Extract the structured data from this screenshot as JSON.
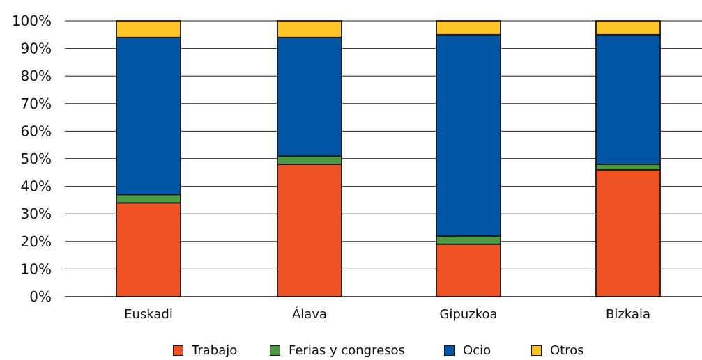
{
  "chart_data": {
    "type": "bar",
    "stacked": true,
    "categories": [
      "Euskadi",
      "Álava",
      "Gipuzkoa",
      "Bizkaia"
    ],
    "series": [
      {
        "name": "Trabajo",
        "color": "#ef5324",
        "values": [
          34,
          48,
          19,
          46
        ]
      },
      {
        "name": "Ferias y congresos",
        "color": "#4e9a43",
        "values": [
          3,
          3,
          3,
          2
        ]
      },
      {
        "name": "Ocio",
        "color": "#0055a5",
        "values": [
          57,
          43,
          73,
          47
        ]
      },
      {
        "name": "Otros",
        "color": "#ffc425",
        "values": [
          6,
          6,
          5,
          5
        ]
      }
    ],
    "yticks": [
      "0%",
      "10%",
      "20%",
      "30%",
      "40%",
      "50%",
      "60%",
      "70%",
      "80%",
      "90%",
      "100%"
    ],
    "ylim": [
      0,
      100
    ],
    "grid": true,
    "legend_position": "bottom"
  }
}
